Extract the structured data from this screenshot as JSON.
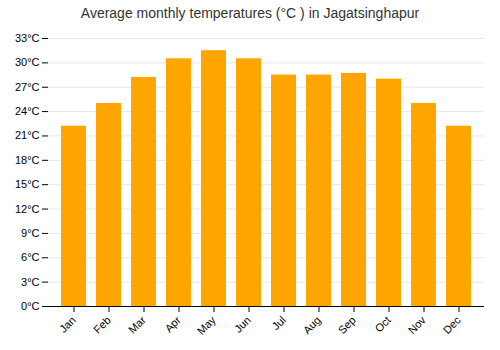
{
  "chart_data": {
    "type": "bar",
    "title": "Average monthly temperatures (°C ) in Jagatsinghapur",
    "categories": [
      "Jan",
      "Feb",
      "Mar",
      "Apr",
      "May",
      "Jun",
      "Jul",
      "Aug",
      "Sep",
      "Oct",
      "Nov",
      "Dec"
    ],
    "values": [
      22.2,
      25.0,
      28.2,
      30.5,
      31.5,
      30.5,
      28.5,
      28.5,
      28.7,
      28.0,
      25.0,
      22.2
    ],
    "color": "#FFA500",
    "ylim": [
      0,
      33
    ],
    "yticks": [
      {
        "value": 0,
        "label": "0°C"
      },
      {
        "value": 3,
        "label": "3°C"
      },
      {
        "value": 6,
        "label": "6°C"
      },
      {
        "value": 9,
        "label": "9°C"
      },
      {
        "value": 12,
        "label": "12°C"
      },
      {
        "value": 15,
        "label": "15°C"
      },
      {
        "value": 18,
        "label": "18°C"
      },
      {
        "value": 21,
        "label": "21°C"
      },
      {
        "value": 24,
        "label": "24°C"
      },
      {
        "value": 27,
        "label": "27°C"
      },
      {
        "value": 30,
        "label": "30°C"
      },
      {
        "value": 33,
        "label": "33°C"
      }
    ],
    "grid": true
  }
}
